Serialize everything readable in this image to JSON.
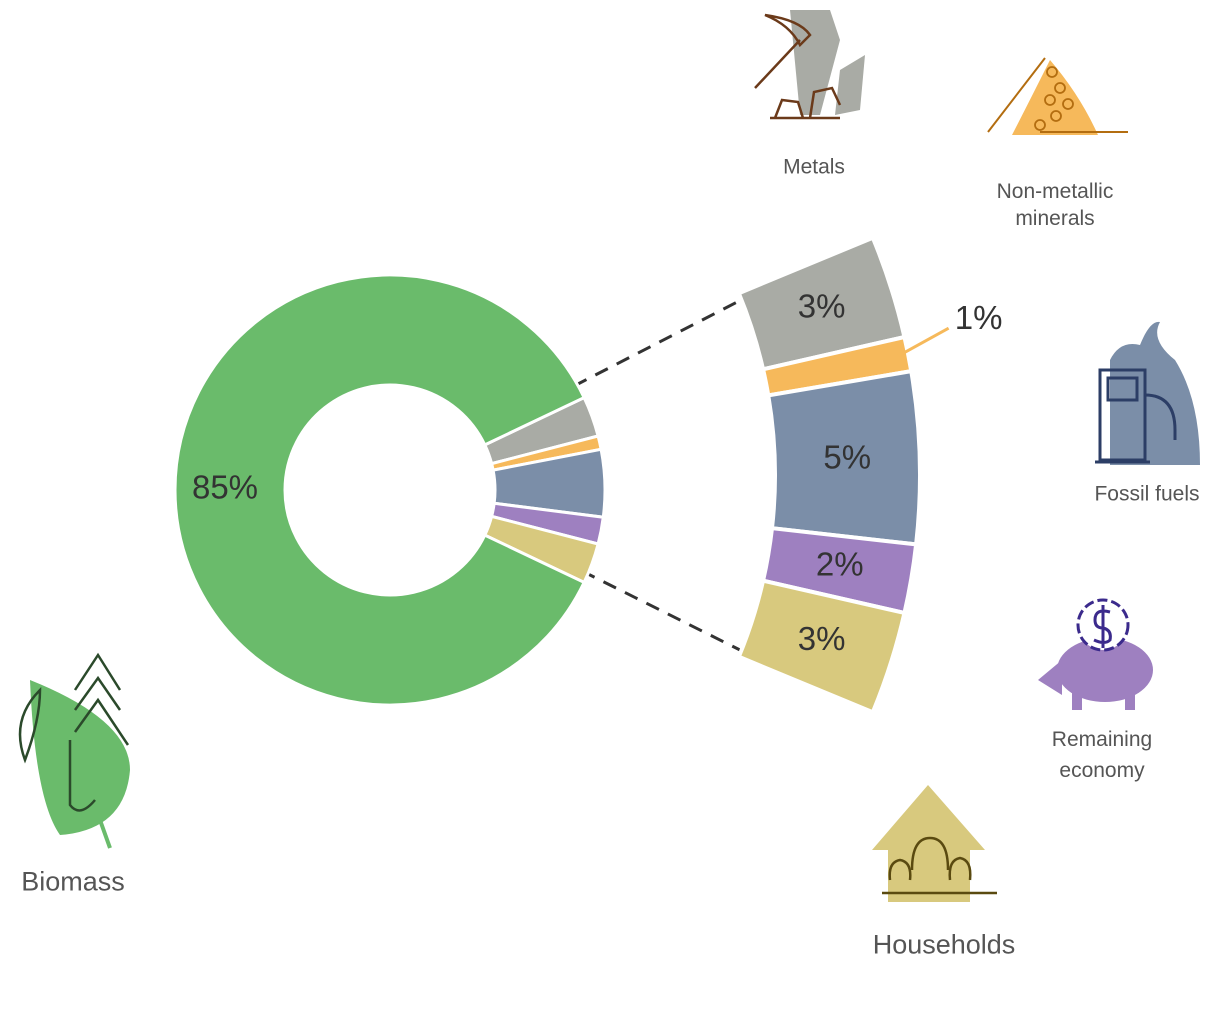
{
  "chart_data": {
    "type": "donut",
    "categories": [
      "Biomass",
      "Metals",
      "Non-metallic minerals",
      "Fossil fuels",
      "Remaining economy",
      "Households"
    ],
    "values": [
      85,
      3,
      1,
      5,
      2,
      3
    ],
    "value_labels": [
      "85%",
      "3%",
      "1%",
      "5%",
      "2%",
      "3%"
    ],
    "colors": [
      "#6abb6b",
      "#a9aba5",
      "#f6b95b",
      "#7b8ea8",
      "#9e80c0",
      "#d8c97e"
    ]
  }
}
